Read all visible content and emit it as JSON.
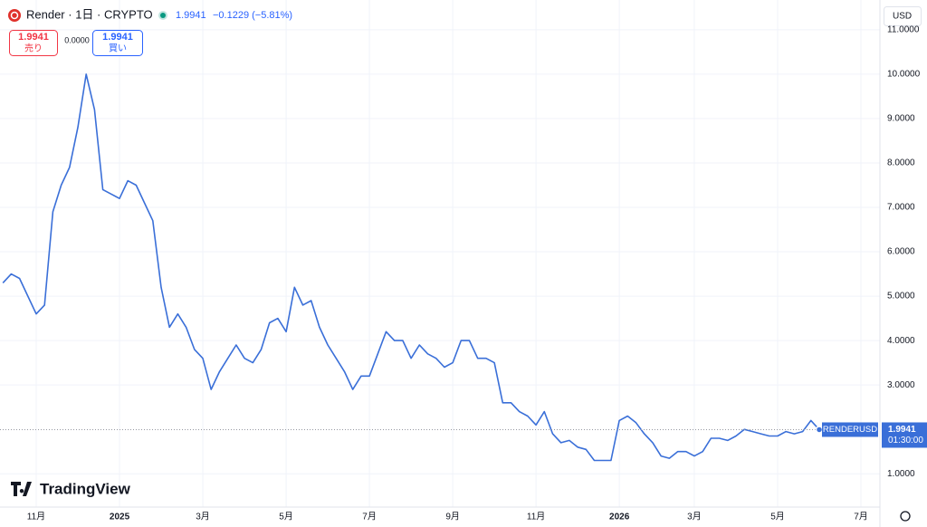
{
  "header": {
    "symbol": "Render · 1日 · CRYPTO",
    "price": "1.9941",
    "change": "−0.1229 (−5.81%)"
  },
  "sell": {
    "price": "1.9941",
    "label": "売り"
  },
  "spread": "0.0000",
  "buy": {
    "price": "1.9941",
    "label": "買い"
  },
  "currency": "USD",
  "price_label": {
    "symbol": "RENDERUSD",
    "price": "1.9941",
    "countdown": "01:30:00"
  },
  "brand": "TradingView",
  "chart_data": {
    "type": "line",
    "categories": [
      null,
      null,
      null,
      null,
      "11月",
      null,
      null,
      null,
      null,
      null,
      null,
      null,
      null,
      null,
      "2025",
      null,
      null,
      null,
      null,
      null,
      null,
      null,
      null,
      null,
      "3月",
      null,
      null,
      null,
      null,
      null,
      null,
      null,
      null,
      null,
      "5月",
      null,
      null,
      null,
      null,
      null,
      null,
      null,
      null,
      null,
      "7月",
      null,
      null,
      null,
      null,
      null,
      null,
      null,
      null,
      null,
      "9月",
      null,
      null,
      null,
      null,
      null,
      null,
      null,
      null,
      null,
      "11月",
      null,
      null,
      null,
      null,
      null,
      null,
      null,
      null,
      null,
      "2026",
      null,
      null,
      null,
      null,
      null,
      null,
      null,
      null,
      "3月",
      null,
      null,
      null,
      null,
      null,
      null,
      null,
      null,
      null,
      "5月",
      null,
      null,
      null,
      null,
      null,
      null,
      null,
      null,
      null,
      "7月"
    ],
    "series": [
      {
        "name": "RENDERUSD",
        "color": "#3a6fd8",
        "values": [
          5.3,
          5.5,
          5.4,
          5.0,
          4.6,
          4.8,
          6.9,
          7.5,
          7.9,
          8.8,
          10.0,
          9.2,
          7.4,
          7.3,
          7.2,
          7.6,
          7.5,
          7.1,
          6.7,
          5.2,
          4.3,
          4.6,
          4.3,
          3.8,
          3.6,
          2.9,
          3.3,
          3.6,
          3.9,
          3.6,
          3.5,
          3.8,
          4.4,
          4.5,
          4.2,
          5.2,
          4.8,
          4.9,
          4.3,
          3.9,
          3.6,
          3.3,
          2.9,
          3.2,
          3.2,
          3.7,
          4.2,
          4.0,
          4.0,
          3.6,
          3.9,
          3.7,
          3.6,
          3.4,
          3.5,
          4.0,
          4.0,
          3.6,
          3.6,
          3.5,
          2.6,
          2.6,
          2.4,
          2.3,
          2.1,
          2.4,
          1.9,
          1.7,
          1.75,
          1.6,
          1.55,
          1.3,
          1.3,
          1.3,
          2.2,
          2.3,
          2.15,
          1.9,
          1.7,
          1.4,
          1.35,
          1.5,
          1.5,
          1.4,
          1.5,
          1.8,
          1.8,
          1.75,
          1.85,
          2.0,
          1.95,
          1.9,
          1.85,
          1.85,
          1.95,
          1.9,
          1.95,
          2.2,
          1.9941,
          null,
          null,
          null,
          null,
          null
        ]
      }
    ],
    "ylim": [
      0.25,
      11.67
    ],
    "yticks": [
      {
        "value": 1,
        "label": "1.0000"
      },
      {
        "value": 3,
        "label": "3.0000"
      },
      {
        "value": 4,
        "label": "4.0000"
      },
      {
        "value": 5,
        "label": "5.0000"
      },
      {
        "value": 6,
        "label": "6.0000"
      },
      {
        "value": 7,
        "label": "7.0000"
      },
      {
        "value": 8,
        "label": "8.0000"
      },
      {
        "value": 9,
        "label": "9.0000"
      },
      {
        "value": 10,
        "label": "10.0000"
      },
      {
        "value": 11,
        "label": "11.0000"
      }
    ],
    "grid": true
  }
}
